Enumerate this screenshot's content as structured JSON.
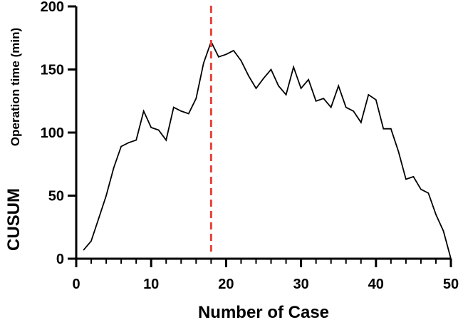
{
  "chart_data": {
    "type": "line",
    "title": "",
    "xlabel": "Number of Case",
    "ylabel_main": "CUSUM",
    "ylabel_sub": "Operation time (min)",
    "xlim": [
      0,
      50
    ],
    "ylim": [
      0,
      200
    ],
    "xticks": [
      0,
      10,
      20,
      30,
      40,
      50
    ],
    "yticks": [
      0,
      50,
      100,
      150,
      200
    ],
    "grid": false,
    "line_color": "#000000",
    "marker_line": {
      "x": 18,
      "color": "#e8403a",
      "style": "dashed"
    },
    "series": [
      {
        "x": [
          1,
          2,
          3,
          4,
          5,
          6,
          7,
          8,
          9,
          10,
          11,
          12,
          13,
          14,
          15,
          16,
          17,
          18,
          19,
          20,
          21,
          22,
          23,
          24,
          25,
          26,
          27,
          28,
          29,
          30,
          31,
          32,
          33,
          34,
          35,
          36,
          37,
          38,
          39,
          40,
          41,
          42,
          43,
          44,
          45,
          46,
          47,
          48,
          49,
          50
        ],
        "values": [
          7,
          14,
          32,
          50,
          72,
          89,
          92,
          94,
          117,
          104,
          102,
          94,
          120,
          117,
          115,
          127,
          155,
          172,
          160,
          162,
          165,
          157,
          145,
          135,
          143,
          150,
          137,
          130,
          152,
          135,
          142,
          125,
          127,
          120,
          137,
          120,
          117,
          108,
          130,
          126,
          103,
          103,
          85,
          63,
          65,
          55,
          52,
          35,
          22,
          0
        ]
      }
    ]
  }
}
